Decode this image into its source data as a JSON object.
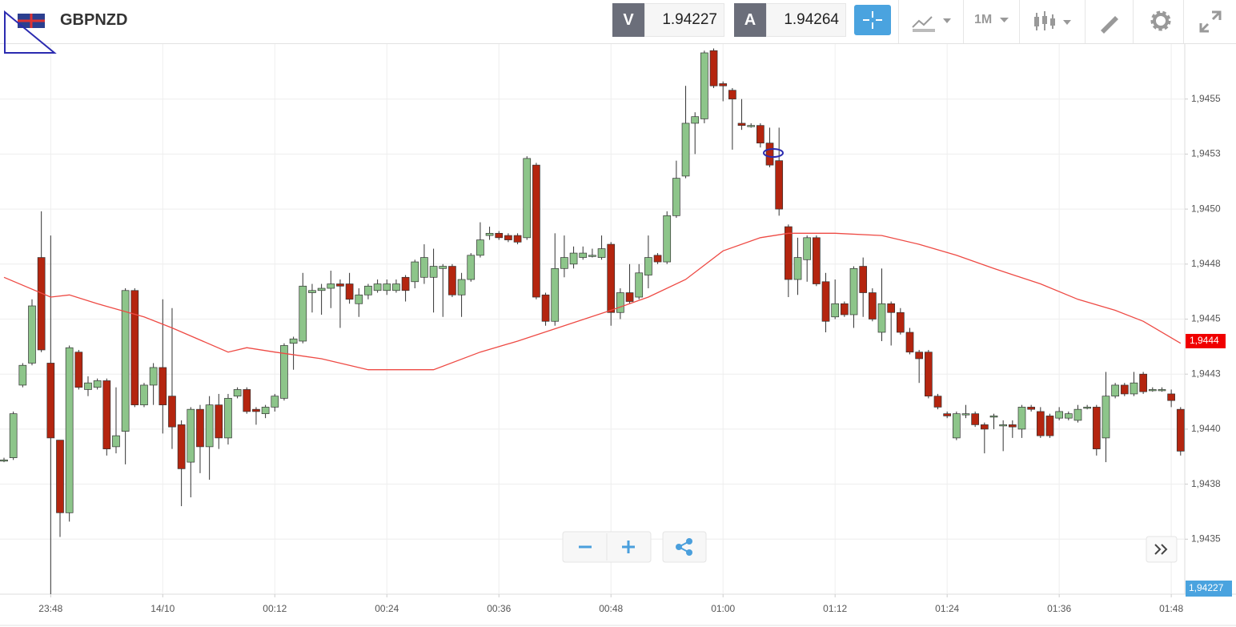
{
  "header": {
    "symbol": "GBPNZD",
    "bid_label": "V",
    "bid": "1.94227",
    "ask_label": "A",
    "ask": "1.94264",
    "timeframe": "1M"
  },
  "chart_data": {
    "type": "candlestick",
    "categories": [
      null,
      null,
      null,
      null,
      null,
      "23:48",
      null,
      null,
      null,
      null,
      null,
      null,
      null,
      null,
      null,
      null,
      null,
      "14/10",
      null,
      null,
      null,
      null,
      null,
      null,
      null,
      null,
      null,
      null,
      null,
      "00:12",
      null,
      null,
      null,
      null,
      null,
      null,
      null,
      null,
      null,
      null,
      null,
      "00:24",
      null,
      null,
      null,
      null,
      null,
      null,
      null,
      null,
      null,
      null,
      null,
      "00:36",
      null,
      null,
      null,
      null,
      null,
      null,
      null,
      null,
      null,
      null,
      null,
      "00:48",
      null,
      null,
      null,
      null,
      null,
      null,
      null,
      null,
      null,
      null,
      null,
      "01:00",
      null,
      null,
      null,
      null,
      null,
      null,
      null,
      null,
      null,
      null,
      null,
      "01:12",
      null,
      null,
      null,
      null,
      null,
      null,
      null,
      null,
      null,
      null,
      null,
      "01:24",
      null,
      null,
      null,
      null,
      null,
      null,
      null,
      null,
      null,
      null,
      null,
      "01:36",
      null,
      null,
      null,
      null,
      null,
      null,
      null,
      null,
      null,
      null,
      null,
      "01:48",
      null
    ],
    "open": [
      1.94386,
      1.94387,
      1.9442,
      1.9443,
      1.94478,
      1.9443,
      1.94395,
      1.94362,
      1.94435,
      1.94418,
      1.94419,
      1.94422,
      1.94392,
      1.94399,
      1.94463,
      1.94411,
      1.9442,
      1.94428,
      1.94415,
      1.94402,
      1.94385,
      1.94409,
      1.94392,
      1.94411,
      1.94396,
      1.94415,
      1.94418,
      1.94409,
      1.94407,
      1.9441,
      1.94414,
      1.94439,
      1.9444,
      1.94462,
      1.94463,
      1.94464,
      1.94466,
      1.94466,
      1.94457,
      1.94461,
      1.94463,
      1.94463,
      1.94463,
      1.94469,
      1.94467,
      1.94469,
      1.94469,
      1.94473,
      1.94474,
      1.94461,
      1.94468,
      1.94479,
      1.94488,
      1.94489,
      1.94488,
      1.94488,
      1.94487,
      1.9452,
      1.94461,
      1.94449,
      1.94473,
      1.94475,
      1.94478,
      1.94479,
      1.94478,
      1.94484,
      1.94453,
      1.94462,
      1.9446,
      1.9447,
      1.94479,
      1.94476,
      1.94497,
      1.94515,
      1.94539,
      1.94541,
      1.94572,
      1.94557,
      1.94554,
      1.94539,
      1.94538,
      1.94538,
      1.9453,
      1.94522,
      1.94492,
      1.94468,
      1.94477,
      1.94487,
      1.94467,
      1.94451,
      1.94457,
      1.94452,
      1.94474,
      1.94462,
      1.94444,
      1.94457,
      1.94453,
      1.94444,
      1.94435,
      1.94435,
      1.94415,
      1.94407,
      1.94396,
      1.94407,
      1.94407,
      1.94402,
      1.94406,
      1.94402,
      1.94402,
      1.944,
      1.9441,
      1.94408,
      1.94406,
      1.94405,
      1.94405,
      1.94404,
      1.9441,
      1.9441,
      1.94396,
      1.94415,
      1.9442,
      1.94416,
      1.94425,
      1.94418,
      1.94418,
      1.94416,
      1.94409
    ],
    "high": [
      1.94387,
      1.94408,
      1.9443,
      1.94459,
      1.94499,
      1.94488,
      1.94395,
      1.94438,
      1.94436,
      1.94424,
      1.94423,
      1.94423,
      1.94419,
      1.94464,
      1.94464,
      1.94421,
      1.9443,
      1.94459,
      1.94455,
      1.94404,
      1.9441,
      1.94411,
      1.94415,
      1.94416,
      1.94416,
      1.94419,
      1.94419,
      1.9441,
      1.94411,
      1.94416,
      1.94439,
      1.94442,
      1.94471,
      1.94466,
      1.94466,
      1.94472,
      1.94468,
      1.94471,
      1.94464,
      1.94466,
      1.94468,
      1.94468,
      1.94468,
      1.9447,
      1.94477,
      1.94484,
      1.94482,
      1.94475,
      1.94475,
      1.94471,
      1.9448,
      1.94494,
      1.94492,
      1.9449,
      1.94489,
      1.94489,
      1.94524,
      1.94521,
      1.94462,
      1.94489,
      1.94488,
      1.94483,
      1.94483,
      1.94482,
      1.94488,
      1.94485,
      1.94464,
      1.94475,
      1.94475,
      1.94488,
      1.9448,
      1.94499,
      1.94522,
      1.94556,
      1.94544,
      1.94572,
      1.94573,
      1.94558,
      1.94555,
      1.9455,
      1.94539,
      1.94539,
      1.94537,
      1.94537,
      1.94493,
      1.94487,
      1.94488,
      1.94488,
      1.94471,
      1.94468,
      1.94458,
      1.94474,
      1.94478,
      1.94464,
      1.94473,
      1.94458,
      1.94455,
      1.94446,
      1.94436,
      1.94436,
      1.94416,
      1.94408,
      1.94408,
      1.94411,
      1.94408,
      1.94403,
      1.94407,
      1.94404,
      1.94404,
      1.94411,
      1.94411,
      1.9441,
      1.94407,
      1.9441,
      1.94408,
      1.94411,
      1.94411,
      1.94411,
      1.94426,
      1.94421,
      1.94421,
      1.94426,
      1.94426,
      1.94419,
      1.94419,
      1.94418,
      1.9441
    ],
    "low": [
      1.94385,
      1.94386,
      1.94419,
      1.94429,
      1.94435,
      1.94325,
      1.94351,
      1.94358,
      1.94418,
      1.94415,
      1.94418,
      1.94388,
      1.94389,
      1.94384,
      1.9441,
      1.9441,
      1.94411,
      1.94398,
      1.94391,
      1.94365,
      1.94369,
      1.9438,
      1.94377,
      1.94391,
      1.94393,
      1.94414,
      1.94407,
      1.94402,
      1.94405,
      1.94408,
      1.94413,
      1.94427,
      1.94439,
      1.94453,
      1.94452,
      1.94455,
      1.94446,
      1.94457,
      1.94451,
      1.94459,
      1.94462,
      1.94461,
      1.94462,
      1.94458,
      1.94464,
      1.94466,
      1.94453,
      1.94451,
      1.9446,
      1.94451,
      1.94467,
      1.94478,
      1.94486,
      1.94486,
      1.94485,
      1.94484,
      1.94486,
      1.94459,
      1.94447,
      1.94447,
      1.94469,
      1.94473,
      1.94477,
      1.94478,
      1.94477,
      1.94447,
      1.9445,
      1.94457,
      1.94459,
      1.94464,
      1.94475,
      1.94475,
      1.94496,
      1.94514,
      1.94525,
      1.94539,
      1.94555,
      1.94549,
      1.94527,
      1.94536,
      1.94537,
      1.94528,
      1.94519,
      1.94497,
      1.9446,
      1.94461,
      1.94467,
      1.94465,
      1.94444,
      1.9445,
      1.94451,
      1.94446,
      1.94451,
      1.94449,
      1.9444,
      1.94438,
      1.94443,
      1.94434,
      1.94421,
      1.94414,
      1.94409,
      1.94405,
      1.94395,
      1.94405,
      1.94401,
      1.94389,
      1.944,
      1.9439,
      1.94396,
      1.94396,
      1.94408,
      1.94396,
      1.94396,
      1.94404,
      1.94404,
      1.94403,
      1.94409,
      1.94388,
      1.94385,
      1.94414,
      1.94415,
      1.94415,
      1.94416,
      1.94417,
      1.94417,
      1.9441,
      1.94388
    ],
    "close": [
      1.94386,
      1.94407,
      1.94429,
      1.94456,
      1.94436,
      1.94396,
      1.94362,
      1.94437,
      1.94419,
      1.94421,
      1.94422,
      1.94391,
      1.94397,
      1.94463,
      1.94411,
      1.9442,
      1.94428,
      1.94411,
      1.94401,
      1.94382,
      1.94409,
      1.94392,
      1.94411,
      1.94396,
      1.94414,
      1.94418,
      1.94408,
      1.94408,
      1.9441,
      1.94415,
      1.94438,
      1.94441,
      1.94465,
      1.94463,
      1.94464,
      1.94466,
      1.94465,
      1.94459,
      1.94461,
      1.94465,
      1.94466,
      1.94466,
      1.94466,
      1.94463,
      1.94476,
      1.94478,
      1.94474,
      1.94474,
      1.94461,
      1.94468,
      1.94479,
      1.94486,
      1.94489,
      1.94487,
      1.94486,
      1.94485,
      1.94523,
      1.9446,
      1.94449,
      1.94473,
      1.94478,
      1.9448,
      1.9448,
      1.94479,
      1.94482,
      1.94453,
      1.94462,
      1.94458,
      1.94471,
      1.94478,
      1.94476,
      1.94497,
      1.94514,
      1.94539,
      1.94542,
      1.94571,
      1.94556,
      1.94556,
      1.9455,
      1.94538,
      1.94538,
      1.9453,
      1.9452,
      1.945,
      1.94468,
      1.94478,
      1.94487,
      1.94466,
      1.94449,
      1.94457,
      1.94452,
      1.94473,
      1.94462,
      1.9445,
      1.94457,
      1.94453,
      1.94444,
      1.94435,
      1.94432,
      1.94415,
      1.9441,
      1.94406,
      1.94407,
      1.94407,
      1.94402,
      1.944,
      1.94406,
      1.94402,
      1.94401,
      1.9441,
      1.94409,
      1.94397,
      1.94397,
      1.94408,
      1.94407,
      1.94409,
      1.9441,
      1.94391,
      1.94415,
      1.9442,
      1.94416,
      1.94421,
      1.94417,
      1.94418,
      1.94418,
      1.94413,
      1.9439
    ],
    "up_color": "#8dc58a",
    "down_color": "#b4250f",
    "ma": {
      "color": "#ee4a44",
      "x": [
        0,
        5,
        7,
        10,
        15,
        18,
        24,
        26,
        29,
        34,
        39,
        46,
        51,
        55,
        60,
        65,
        69,
        73,
        77,
        81,
        84,
        89,
        94,
        98,
        102,
        106,
        111,
        115,
        119,
        122,
        126
      ],
      "values": [
        1.94469,
        1.9446,
        1.94461,
        1.94457,
        1.94451,
        1.94446,
        1.94435,
        1.94437,
        1.94435,
        1.94432,
        1.94427,
        1.94427,
        1.94435,
        1.9444,
        1.94447,
        1.94454,
        1.9446,
        1.94468,
        1.94481,
        1.94487,
        1.94489,
        1.94489,
        1.94488,
        1.94484,
        1.94479,
        1.94473,
        1.94466,
        1.94459,
        1.94454,
        1.94449,
        1.94439
      ]
    },
    "ma_last": {
      "value": 1.9444,
      "label": "1,9444"
    },
    "last_price": {
      "value": 1.94227,
      "label": "1,94227"
    },
    "ylim": [
      1.94325,
      1.94575
    ],
    "yticks": [
      {
        "value": 1.9435,
        "label": "1,9435"
      },
      {
        "value": 1.94375,
        "label": "1,9438"
      },
      {
        "value": 1.944,
        "label": "1,9440"
      },
      {
        "value": 1.94425,
        "label": "1,9443"
      },
      {
        "value": 1.9445,
        "label": "1,9445"
      },
      {
        "value": 1.94475,
        "label": "1,9448"
      },
      {
        "value": 1.945,
        "label": "1,9450"
      },
      {
        "value": 1.94525,
        "label": "1,9453"
      },
      {
        "value": 1.9455,
        "label": "1,9455"
      }
    ],
    "grid": true
  }
}
